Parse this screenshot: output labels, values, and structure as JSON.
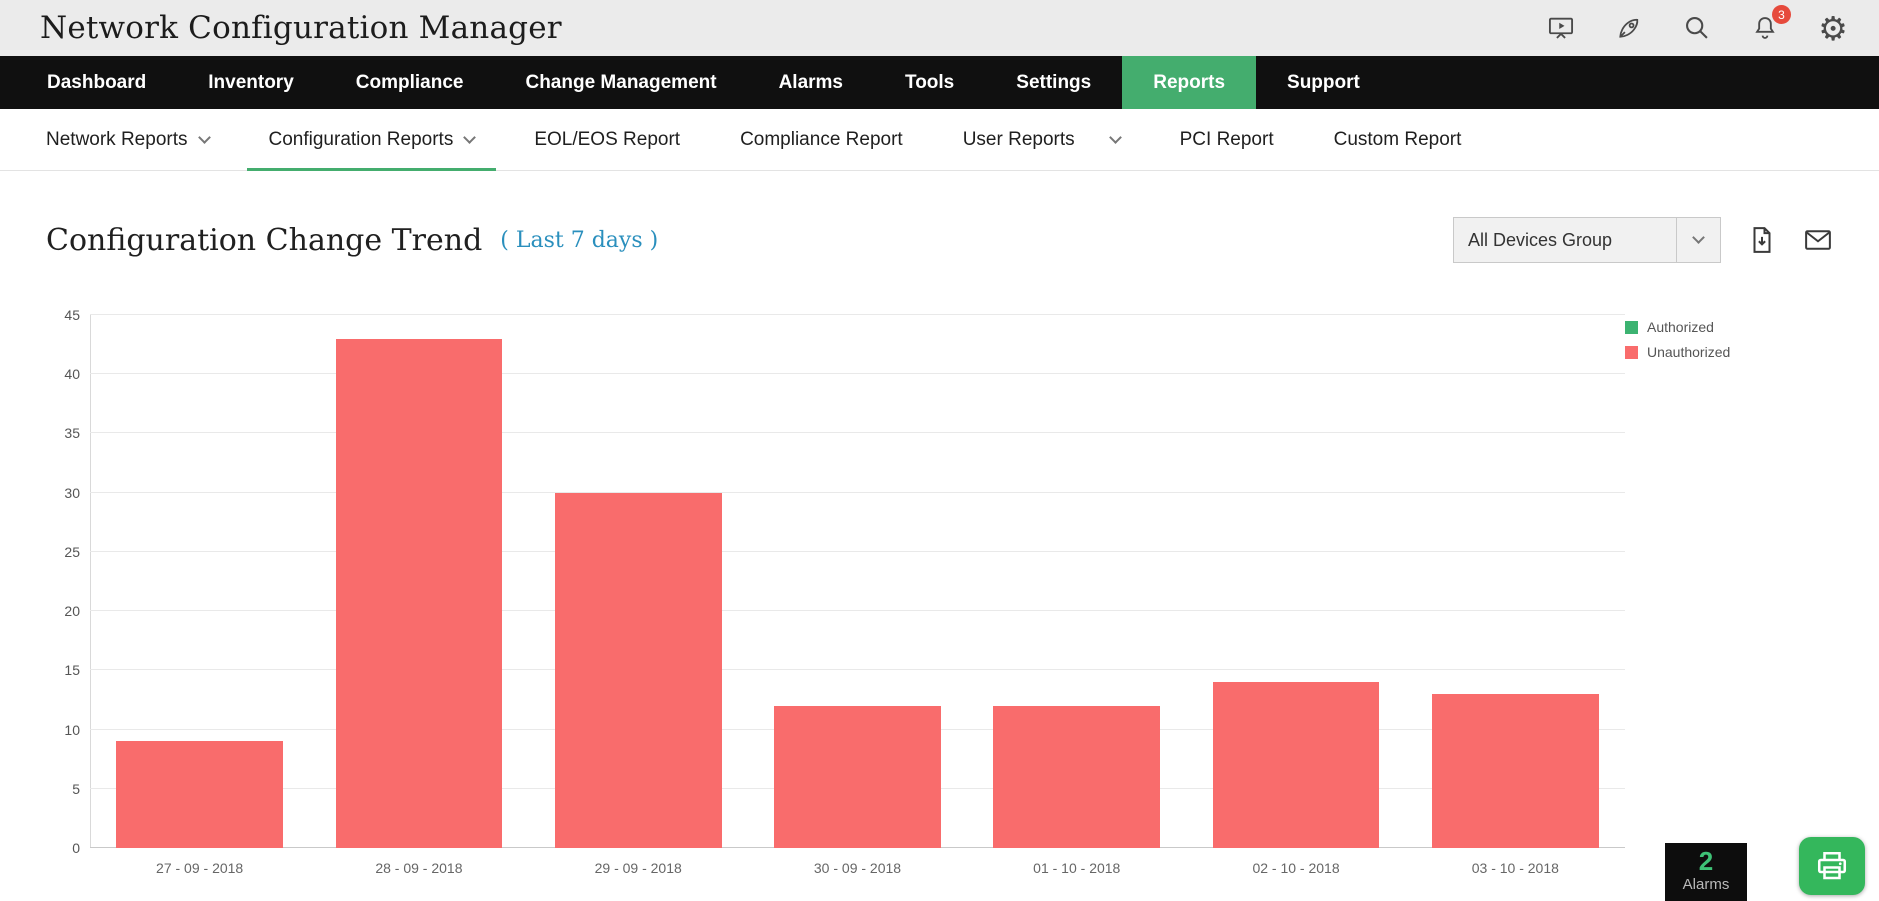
{
  "app": {
    "title": "Network Configuration Manager"
  },
  "topbar": {
    "notification_badge": "3",
    "icons": [
      "presentation-icon",
      "rocket-icon",
      "search-icon",
      "notifications-bell-icon",
      "settings-gear-icon"
    ]
  },
  "nav": {
    "items": [
      {
        "label": "Dashboard",
        "active": false
      },
      {
        "label": "Inventory",
        "active": false
      },
      {
        "label": "Compliance",
        "active": false
      },
      {
        "label": "Change Management",
        "active": false
      },
      {
        "label": "Alarms",
        "active": false
      },
      {
        "label": "Tools",
        "active": false
      },
      {
        "label": "Settings",
        "active": false
      },
      {
        "label": "Reports",
        "active": true
      },
      {
        "label": "Support",
        "active": false
      }
    ]
  },
  "subnav": {
    "items": [
      {
        "label": "Network Reports",
        "dropdown": true,
        "active": false
      },
      {
        "label": "Configuration Reports",
        "dropdown": true,
        "active": true
      },
      {
        "label": "EOL/EOS Report",
        "dropdown": false,
        "active": false
      },
      {
        "label": "Compliance Report",
        "dropdown": false,
        "active": false
      },
      {
        "label": "User Reports",
        "dropdown": true,
        "active": false
      },
      {
        "label": "PCI Report",
        "dropdown": false,
        "active": false
      },
      {
        "label": "Custom Report",
        "dropdown": false,
        "active": false
      }
    ]
  },
  "page": {
    "title": "Configuration Change Trend",
    "period": "( Last 7 days )",
    "device_group_selected": "All Devices Group"
  },
  "chart_data": {
    "type": "bar",
    "title": "Configuration Change Trend",
    "categories": [
      "27 - 09 - 2018",
      "28 - 09 - 2018",
      "29 - 09 - 2018",
      "30 - 09 - 2018",
      "01 - 10 - 2018",
      "02 - 10 - 2018",
      "03 - 10 - 2018"
    ],
    "series": [
      {
        "name": "Authorized",
        "color": "#3cb371",
        "values": [
          0,
          0,
          0,
          0,
          0,
          0,
          0
        ]
      },
      {
        "name": "Unauthorized",
        "color": "#f96c6c",
        "values": [
          9,
          43,
          30,
          12,
          12,
          14,
          13
        ]
      }
    ],
    "ylim": [
      0,
      45
    ],
    "ytick_step": 5,
    "grid": true,
    "legend_position": "top-right"
  },
  "alarms_widget": {
    "count": "2",
    "label": "Alarms"
  },
  "colors": {
    "accent_green": "#44ad6e",
    "bar_red": "#f96c6c",
    "link_blue": "#2a8fbd",
    "nav_black": "#101010",
    "topbar_gray": "#ebebeb"
  }
}
